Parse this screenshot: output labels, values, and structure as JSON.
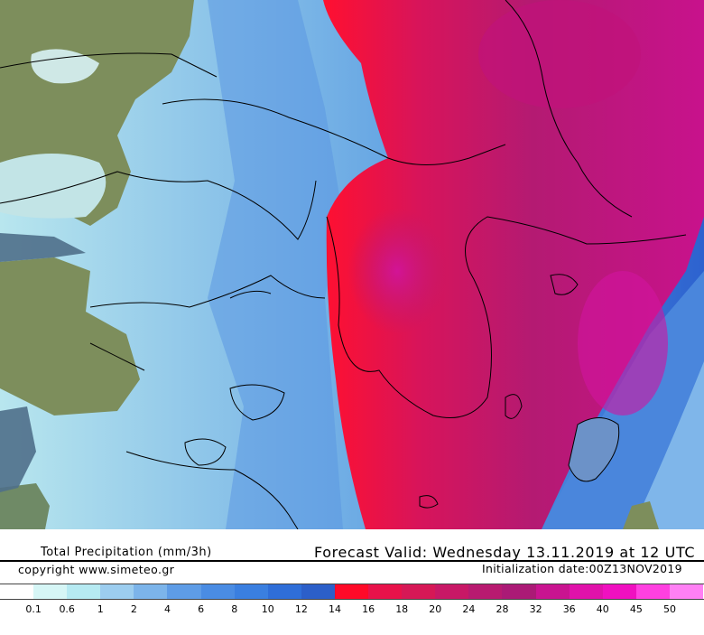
{
  "title": "Total Precipitation (mm/3h)",
  "forecast_valid": "Forecast Valid:  Wednesday 13.11.2019 at 12 UTC",
  "copyright": "copyright www.simeteo.gr",
  "initialization": "Initialization date:00Z13NOV2019",
  "legend": {
    "ticks": [
      "0.1",
      "0.6",
      "1",
      "2",
      "4",
      "6",
      "8",
      "10",
      "12",
      "14",
      "16",
      "18",
      "20",
      "24",
      "28",
      "32",
      "36",
      "40",
      "45",
      "50"
    ],
    "colors": [
      "#ffffff",
      "#d6f6f6",
      "#b6eaf2",
      "#9ccdef",
      "#7cb4ea",
      "#5e9ce6",
      "#4a8ce3",
      "#3a7fe0",
      "#2f6ed8",
      "#2c5fc9",
      "#ff0a28",
      "#e8124a",
      "#d61856",
      "#c81866",
      "#b81a70",
      "#ab1a76",
      "#c91490",
      "#e012aa",
      "#f010c0",
      "#ff40e0",
      "#ff80f4"
    ]
  },
  "map": {
    "land_color": "#7b8c5a",
    "sea_color": "#4f6f8a",
    "boundary_color": "#000000"
  }
}
